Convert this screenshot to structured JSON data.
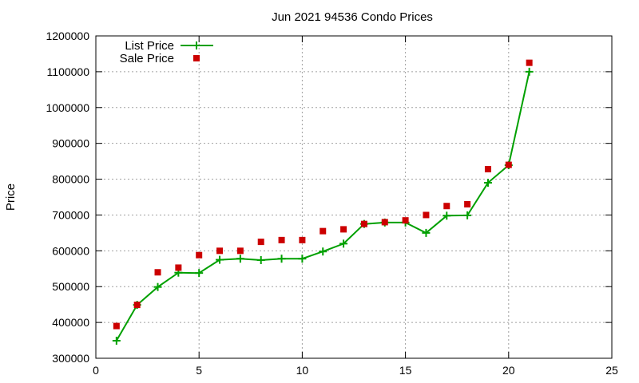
{
  "chart_data": {
    "type": "scatter",
    "title": "Jun 2021 94536 Condo Prices",
    "xlabel": "",
    "ylabel": "Price",
    "xlim": [
      0,
      25
    ],
    "ylim": [
      300000,
      1200000
    ],
    "x_ticks": [
      0,
      5,
      10,
      15,
      20,
      25
    ],
    "y_ticks": [
      300000,
      400000,
      500000,
      600000,
      700000,
      800000,
      900000,
      1000000,
      1100000,
      1200000
    ],
    "grid": true,
    "legend_position": "top-left",
    "series": [
      {
        "name": "List Price",
        "style": "line-with-plus-markers",
        "color": "#00a000",
        "points": [
          [
            1,
            349000
          ],
          [
            2,
            449000
          ],
          [
            3,
            499000
          ],
          [
            4,
            539000
          ],
          [
            5,
            538000
          ],
          [
            6,
            575000
          ],
          [
            7,
            578000
          ],
          [
            8,
            574000
          ],
          [
            9,
            578000
          ],
          [
            10,
            578000
          ],
          [
            11,
            598000
          ],
          [
            12,
            620000
          ],
          [
            13,
            675000
          ],
          [
            14,
            679000
          ],
          [
            15,
            679000
          ],
          [
            16,
            650000
          ],
          [
            17,
            698000
          ],
          [
            18,
            699000
          ],
          [
            19,
            790000
          ],
          [
            20,
            839000
          ],
          [
            21,
            1100000
          ]
        ]
      },
      {
        "name": "Sale Price",
        "style": "square-markers",
        "color": "#cc0000",
        "points": [
          [
            1,
            390000
          ],
          [
            2,
            449000
          ],
          [
            3,
            540000
          ],
          [
            4,
            553000
          ],
          [
            5,
            588000
          ],
          [
            6,
            600000
          ],
          [
            7,
            600000
          ],
          [
            8,
            625000
          ],
          [
            9,
            630000
          ],
          [
            10,
            630000
          ],
          [
            11,
            655000
          ],
          [
            12,
            660000
          ],
          [
            13,
            675000
          ],
          [
            14,
            680000
          ],
          [
            15,
            685000
          ],
          [
            16,
            700000
          ],
          [
            17,
            725000
          ],
          [
            18,
            730000
          ],
          [
            19,
            828000
          ],
          [
            20,
            840000
          ],
          [
            21,
            1125000
          ]
        ]
      }
    ]
  }
}
